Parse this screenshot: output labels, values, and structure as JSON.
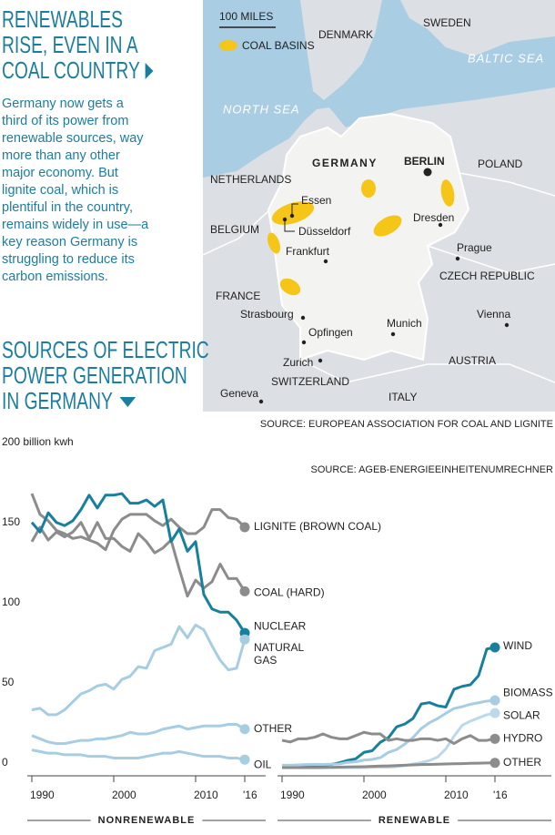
{
  "headline": [
    "RENEWABLES",
    "RISE, EVEN IN A",
    "COAL COUNTRY"
  ],
  "body": "Germany now gets a third of its power from renewable sources, way more than any other major economy. But lignite coal, which is plentiful in the country, remains widely in use—a key reason Germany is struggling to reduce its carbon emissions.",
  "section_title": [
    "SOURCES OF ELECTRIC",
    "POWER GENERATION",
    "IN GERMANY"
  ],
  "map": {
    "scale": "100 MILES",
    "legend": "COAL BASINS",
    "labels": [
      "DENMARK",
      "SWEDEN",
      "BALTIC SEA",
      "NORTH SEA",
      "GERMANY",
      "BERLIN",
      "POLAND",
      "NETHERLANDS",
      "Essen",
      "Düsseldorf",
      "Dresden",
      "BELGIUM",
      "Frankfurt",
      "Prague",
      "CZECH REPUBLIC",
      "FRANCE",
      "Strasbourg",
      "Opfingen",
      "Munich",
      "Vienna",
      "AUSTRIA",
      "Zurich",
      "SWITZERLAND",
      "Geneva",
      "ITALY"
    ],
    "source": "SOURCE: EUROPEAN ASSOCIATION FOR COAL AND LIGNITE"
  },
  "chart_data": [
    {
      "type": "line",
      "source": "SOURCE: AGEB-ENERGIEEINHEITENUMRECHNER",
      "x_label": "NONRENEWABLE",
      "x": [
        1990,
        1991,
        1992,
        1993,
        1994,
        1995,
        1996,
        1997,
        1998,
        1999,
        2000,
        2001,
        2002,
        2003,
        2004,
        2005,
        2006,
        2007,
        2008,
        2009,
        2010,
        2011,
        2012,
        2013,
        2014,
        2015,
        2016
      ],
      "xlim": [
        1990,
        2016
      ],
      "xticks": [
        1990,
        2000,
        2010,
        {
          "value": 2016,
          "label": "'16"
        }
      ],
      "ylim": [
        0,
        200
      ],
      "yticks": [
        0,
        50,
        100,
        150,
        {
          "value": 200,
          "label": "200 billion kwh"
        }
      ],
      "series": [
        {
          "name": "LIGNITE (BROWN COAL)",
          "color": "#8c8c8c",
          "values": [
            171,
            158,
            154,
            148,
            146,
            143,
            144,
            142,
            140,
            136,
            148,
            155,
            158,
            158,
            158,
            154,
            151,
            155,
            150,
            146,
            146,
            150,
            161,
            161,
            156,
            155,
            150
          ]
        },
        {
          "name": "COAL (HARD)",
          "color": "#8c8c8c",
          "values": [
            141,
            150,
            142,
            147,
            144,
            147,
            153,
            143,
            153,
            143,
            143,
            138,
            135,
            146,
            141,
            134,
            137,
            142,
            124,
            107,
            117,
            112,
            116,
            127,
            118,
            118,
            110
          ]
        },
        {
          "name": "NUCLEAR",
          "color": "#17809e",
          "values": [
            153,
            147,
            159,
            153,
            151,
            154,
            161,
            170,
            162,
            170,
            170,
            171,
            165,
            165,
            167,
            163,
            167,
            141,
            149,
            135,
            141,
            108,
            99,
            97,
            97,
            92,
            84
          ]
        },
        {
          "name": "NATURAL GAS",
          "color": "#a7cde3",
          "values": [
            36,
            37,
            33,
            33,
            36,
            41,
            46,
            48,
            51,
            52,
            49,
            55,
            57,
            63,
            62,
            73,
            75,
            77,
            88,
            81,
            89,
            86,
            76,
            67,
            61,
            62,
            80
          ]
        },
        {
          "name": "OTHER",
          "color": "#a7cde3",
          "values": [
            20,
            18,
            16,
            15,
            15,
            16,
            17,
            17,
            18,
            18,
            19,
            20,
            22,
            21,
            21,
            22,
            24,
            25,
            26,
            24,
            25,
            26,
            26,
            26,
            27,
            27,
            24
          ]
        },
        {
          "name": "OIL",
          "color": "#a7cde3",
          "values": [
            11,
            10,
            9,
            9,
            8,
            8,
            8,
            7,
            7,
            7,
            6,
            6,
            6,
            6,
            7,
            8,
            9,
            9,
            10,
            9,
            8,
            7,
            7,
            7,
            6,
            6,
            5
          ]
        }
      ]
    },
    {
      "type": "line",
      "x_label": "RENEWABLE",
      "x": [
        1990,
        1991,
        1992,
        1993,
        1994,
        1995,
        1996,
        1997,
        1998,
        1999,
        2000,
        2001,
        2002,
        2003,
        2004,
        2005,
        2006,
        2007,
        2008,
        2009,
        2010,
        2011,
        2012,
        2013,
        2014,
        2015,
        2016
      ],
      "xlim": [
        1990,
        2016
      ],
      "xticks": [
        1990,
        2000,
        2010,
        {
          "value": 2016,
          "label": "'16"
        }
      ],
      "ylim": [
        0,
        200
      ],
      "series": [
        {
          "name": "WIND",
          "color": "#17809e",
          "values": [
            0,
            0.1,
            0.3,
            0.6,
            0.9,
            1.5,
            2,
            3,
            4.5,
            5.5,
            9.5,
            10.5,
            15.8,
            18.7,
            25.5,
            27.2,
            30.7,
            39.7,
            40.6,
            38.6,
            37.8,
            48.9,
            50.7,
            51.7,
            57.4,
            74,
            75
          ]
        },
        {
          "name": "BIOMASS",
          "color": "#a7cde3",
          "values": [
            1.4,
            1.5,
            1.7,
            1.9,
            2,
            2,
            2.1,
            2.3,
            3.3,
            3.6,
            4.7,
            5.1,
            6.2,
            9.5,
            11.3,
            14.7,
            18.8,
            24.4,
            28,
            30.6,
            33.9,
            36.9,
            38,
            39.5,
            40.5,
            41.5,
            42
          ]
        },
        {
          "name": "SOLAR",
          "color": "#bcd9ea",
          "values": [
            0,
            0,
            0,
            0,
            0,
            0,
            0,
            0,
            0,
            0,
            0.1,
            0.2,
            0.3,
            0.3,
            0.6,
            1.3,
            2.2,
            3.1,
            4.4,
            6.6,
            11.7,
            19.6,
            26.4,
            29,
            31,
            33,
            34
          ]
        },
        {
          "name": "HYDRO",
          "color": "#8c8c8c",
          "values": [
            17,
            16,
            18,
            18,
            19,
            21,
            19,
            18,
            18,
            20,
            22,
            21,
            21,
            17,
            18,
            17,
            17,
            18,
            18,
            17,
            18,
            15,
            18,
            20,
            17,
            17,
            18
          ]
        },
        {
          "name": "OTHER",
          "color": "#8c8c8c",
          "values": [
            0,
            0,
            0,
            0,
            0,
            0.1,
            0.2,
            0.3,
            0.4,
            0.5,
            0.6,
            0.8,
            1,
            1.1,
            1.3,
            1.5,
            1.7,
            1.9,
            2,
            2.1,
            2.3,
            2.4,
            2.5,
            2.7,
            2.8,
            2.9,
            3
          ]
        }
      ]
    }
  ]
}
